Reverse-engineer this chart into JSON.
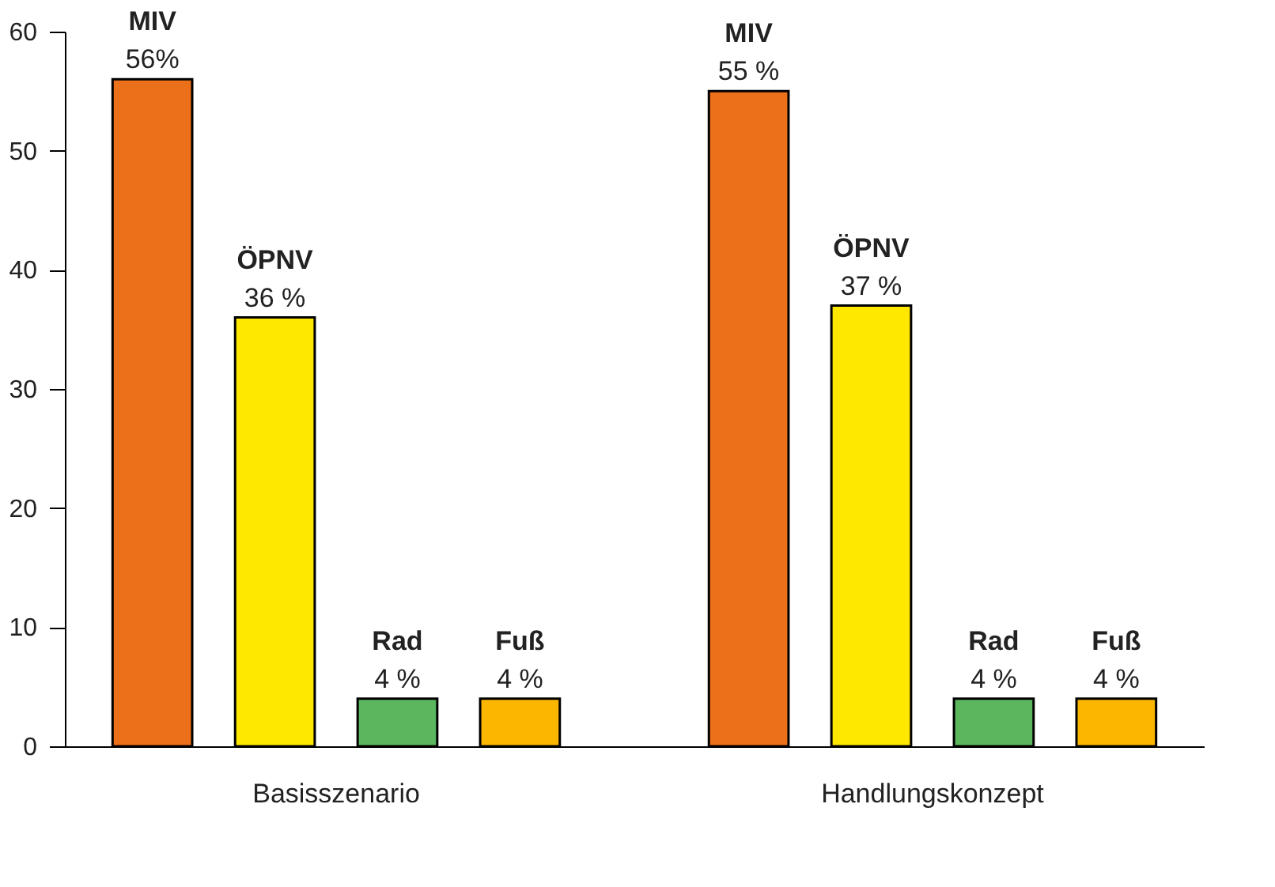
{
  "chart_data": {
    "type": "bar",
    "categories": [
      "Basisszenario",
      "Handlungskonzept"
    ],
    "series": [
      {
        "name": "MIV",
        "color": "#ec7019",
        "values": [
          56,
          55
        ],
        "value_labels": [
          "56%",
          "55 %"
        ]
      },
      {
        "name": "ÖPNV",
        "color": "#ffe800",
        "values": [
          36,
          37
        ],
        "value_labels": [
          "36 %",
          "37 %"
        ]
      },
      {
        "name": "Rad",
        "color": "#5bb65e",
        "values": [
          4,
          4
        ],
        "value_labels": [
          "4 %",
          "4 %"
        ]
      },
      {
        "name": "Fuß",
        "color": "#fbb600",
        "values": [
          4,
          4
        ],
        "value_labels": [
          "4 %",
          "4 %"
        ]
      }
    ],
    "ylim": [
      0,
      60
    ],
    "yticks": [
      0,
      10,
      20,
      30,
      40,
      50,
      60
    ],
    "grid": false,
    "legend": false
  }
}
